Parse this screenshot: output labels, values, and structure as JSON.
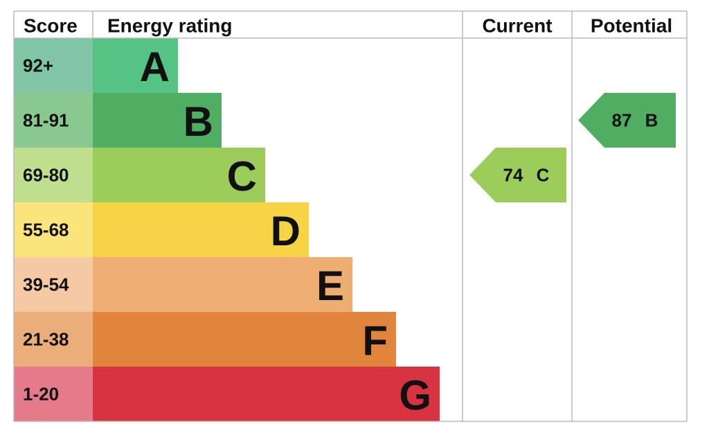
{
  "chart_data": {
    "type": "epc",
    "headers": {
      "score": "Score",
      "rating": "Energy rating",
      "current": "Current",
      "potential": "Potential"
    },
    "bands": [
      {
        "range": "92+",
        "letter": "A",
        "color": "#55c383",
        "score_color": "#80c6a5"
      },
      {
        "range": "81-91",
        "letter": "B",
        "color": "#4fae62",
        "score_color": "#89c990"
      },
      {
        "range": "69-80",
        "letter": "C",
        "color": "#9ccc59",
        "score_color": "#bfdf8f"
      },
      {
        "range": "55-68",
        "letter": "D",
        "color": "#f6d445",
        "score_color": "#fbe47c"
      },
      {
        "range": "39-54",
        "letter": "E",
        "color": "#efae71",
        "score_color": "#f5c9a3"
      },
      {
        "range": "21-38",
        "letter": "F",
        "color": "#e0853b",
        "score_color": "#ebad7a"
      },
      {
        "range": "1-20",
        "letter": "G",
        "color": "#d83341",
        "score_color": "#e57a8b"
      }
    ],
    "current": {
      "value": 74,
      "letter": "C"
    },
    "potential": {
      "value": 87,
      "letter": "B"
    }
  }
}
